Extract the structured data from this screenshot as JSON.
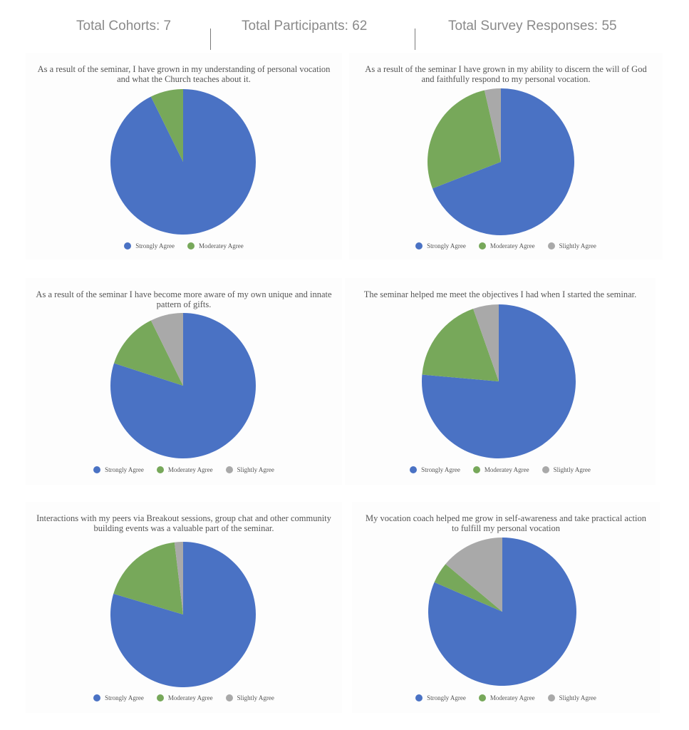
{
  "stats": {
    "cohorts": "Total Cohorts: 7",
    "participants": "Total Participants: 62",
    "responses": "Total Survey Responses: 55"
  },
  "colors": {
    "strongly": "#4a72c4",
    "moderately": "#77a85a",
    "slightly": "#a9a9a9"
  },
  "chart_data": [
    {
      "type": "pie",
      "title": "As a result of the seminar, I have grown in my understanding of personal vocation and what the Church teaches about it.",
      "labels": [
        "Strongly Agree",
        "Moderatey Agree"
      ],
      "values": [
        92.7,
        7.3
      ],
      "legend": "bottom"
    },
    {
      "type": "pie",
      "title": "As a result of the seminar I have grown in my ability to discern the will of God and faithfully respond to my personal vocation.",
      "labels": [
        "Strongly Agree",
        "Moderatey Agree",
        "Slightly Agree"
      ],
      "values": [
        69.1,
        27.3,
        3.6
      ],
      "legend": "bottom"
    },
    {
      "type": "pie",
      "title": "As a result of the seminar I have become more aware of my own unique and innate pattern of gifts.",
      "labels": [
        "Strongly Agree",
        "Moderatey Agree",
        "Slightly Agree"
      ],
      "values": [
        80.0,
        12.7,
        7.3
      ],
      "legend": "bottom"
    },
    {
      "type": "pie",
      "title": "The seminar helped me meet the objectives I had when I started the seminar.",
      "labels": [
        "Strongly Agree",
        "Moderatey Agree",
        "Slightly Agree"
      ],
      "values": [
        76.4,
        18.2,
        5.4
      ],
      "legend": "bottom"
    },
    {
      "type": "pie",
      "title": "Interactions with my peers via Breakout sessions, group chat and other community building events was a valuable part of the seminar.",
      "labels": [
        "Strongly Agree",
        "Moderatey Agree",
        "Slightly Agree"
      ],
      "values": [
        79.6,
        18.5,
        1.9
      ],
      "legend": "bottom"
    },
    {
      "type": "pie",
      "title": "My vocation coach helped me grow in self-awareness and take practical action to fulfill my personal vocation",
      "labels": [
        "Strongly Agree",
        "Moderatey Agree",
        "Slightly Agree"
      ],
      "values": [
        81.5,
        4.6,
        13.9
      ],
      "legend": "bottom"
    }
  ]
}
